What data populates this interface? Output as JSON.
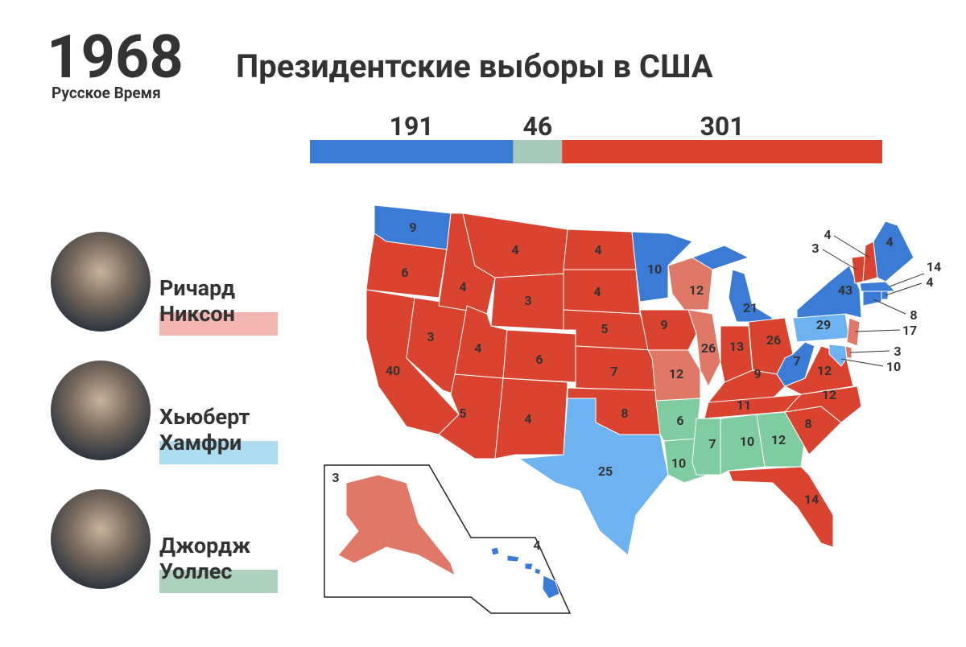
{
  "header": {
    "year": "1968",
    "source": "Русское Время",
    "title": "Президентские выборы в США"
  },
  "electoral_bar": {
    "segments": [
      {
        "value": 191,
        "color": "#3a7bd5"
      },
      {
        "value": 46,
        "color": "#a9c9bb"
      },
      {
        "value": 301,
        "color": "#d9432f"
      }
    ]
  },
  "candidates": [
    {
      "first": "Ричард",
      "last": "Никсон",
      "color": "#f2b5b0"
    },
    {
      "first": "Хьюберт",
      "last": "Хамфри",
      "color": "#acdcee"
    },
    {
      "first": "Джордж",
      "last": "Уоллес",
      "color": "#aed2bf"
    }
  ],
  "map": {
    "states": [
      {
        "ev": 9,
        "color": "#3a7bd5"
      },
      {
        "ev": 6,
        "color": "#d9432f"
      },
      {
        "ev": 40,
        "color": "#d9432f"
      },
      {
        "ev": 3,
        "color": "#d9432f"
      },
      {
        "ev": 4,
        "color": "#d9432f"
      },
      {
        "ev": 4,
        "color": "#d9432f"
      },
      {
        "ev": 3,
        "color": "#d9432f"
      },
      {
        "ev": 4,
        "color": "#d9432f"
      },
      {
        "ev": 5,
        "color": "#d9432f"
      },
      {
        "ev": 6,
        "color": "#d9432f"
      },
      {
        "ev": 4,
        "color": "#d9432f"
      },
      {
        "ev": 4,
        "color": "#d9432f"
      },
      {
        "ev": 4,
        "color": "#d9432f"
      },
      {
        "ev": 5,
        "color": "#d9432f"
      },
      {
        "ev": 7,
        "color": "#d9432f"
      },
      {
        "ev": 8,
        "color": "#d9432f"
      },
      {
        "ev": 25,
        "color": "#6db3f2"
      },
      {
        "ev": 10,
        "color": "#3a7bd5"
      },
      {
        "ev": 9,
        "color": "#d9432f"
      },
      {
        "ev": 12,
        "color": "#e07868"
      },
      {
        "ev": 6,
        "color": "#7fcca0"
      },
      {
        "ev": 10,
        "color": "#7fcca0"
      },
      {
        "ev": 12,
        "color": "#e07868"
      },
      {
        "ev": 26,
        "color": "#e07868"
      },
      {
        "ev": 21,
        "color": "#3a7bd5"
      },
      {
        "ev": 13,
        "color": "#d9432f"
      },
      {
        "ev": 26,
        "color": "#d9432f"
      },
      {
        "ev": 9,
        "color": "#d9432f"
      },
      {
        "ev": 11,
        "color": "#d9432f"
      },
      {
        "ev": 7,
        "color": "#7fcca0"
      },
      {
        "ev": 10,
        "color": "#7fcca0"
      },
      {
        "ev": 12,
        "color": "#7fcca0"
      },
      {
        "ev": 14,
        "color": "#d9432f"
      },
      {
        "ev": 8,
        "color": "#d9432f"
      },
      {
        "ev": 12,
        "color": "#d9432f"
      },
      {
        "ev": 12,
        "color": "#d9432f"
      },
      {
        "ev": 7,
        "color": "#3a7bd5"
      },
      {
        "ev": 29,
        "color": "#6db3f2"
      },
      {
        "ev": 43,
        "color": "#3a7bd5"
      },
      {
        "ev": 3,
        "color": "#d9432f"
      },
      {
        "ev": 4,
        "color": "#d9432f"
      },
      {
        "ev": 4,
        "color": "#3a7bd5"
      },
      {
        "ev": 14,
        "color": "#3a7bd5"
      },
      {
        "ev": 4,
        "color": "#3a7bd5"
      },
      {
        "ev": 8,
        "color": "#3a7bd5"
      },
      {
        "ev": 17,
        "color": "#e07868"
      },
      {
        "ev": 3,
        "color": "#e07868"
      },
      {
        "ev": 10,
        "color": "#6db3f2"
      },
      {
        "ev": 3,
        "color": "#e07868"
      },
      {
        "ev": 4,
        "color": "#3a7bd5"
      }
    ]
  }
}
